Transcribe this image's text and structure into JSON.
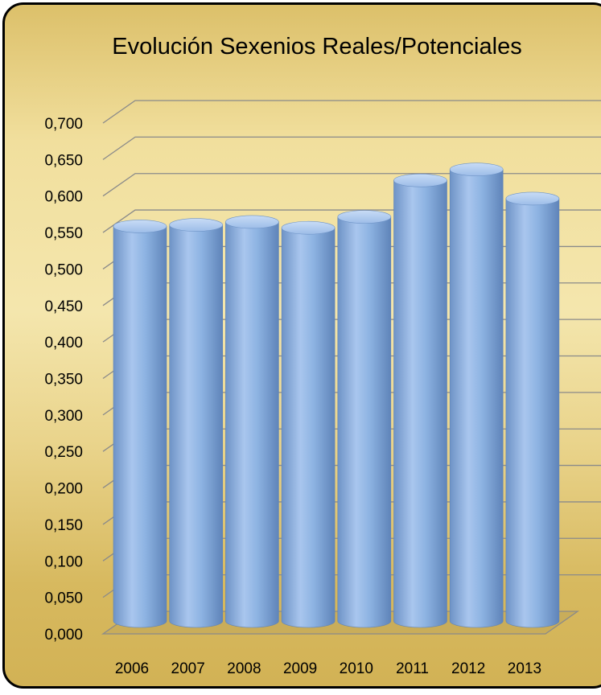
{
  "chart_data": {
    "type": "bar",
    "title": "Evolución Sexenios Reales/Potenciales",
    "categories": [
      "2006",
      "2007",
      "2008",
      "2009",
      "2010",
      "2011",
      "2012",
      "2013"
    ],
    "values": [
      0.543,
      0.545,
      0.549,
      0.541,
      0.556,
      0.606,
      0.621,
      0.581
    ],
    "ylim": [
      0,
      0.7
    ],
    "yticks": [
      0,
      0.05,
      0.1,
      0.15,
      0.2,
      0.25,
      0.3,
      0.35,
      0.4,
      0.45,
      0.5,
      0.55,
      0.6,
      0.65,
      0.7
    ],
    "ytick_labels": [
      "0,000",
      "0,050",
      "0,100",
      "0,150",
      "0,200",
      "0,250",
      "0,300",
      "0,350",
      "0,400",
      "0,450",
      "0,500",
      "0,550",
      "0,600",
      "0,650",
      "0,700"
    ],
    "xlabel": "",
    "ylabel": "",
    "grid": true,
    "legend": "none",
    "style": "3d-cylinder",
    "bar_color": "#8db3e2",
    "background_color": "#f1df9d"
  }
}
